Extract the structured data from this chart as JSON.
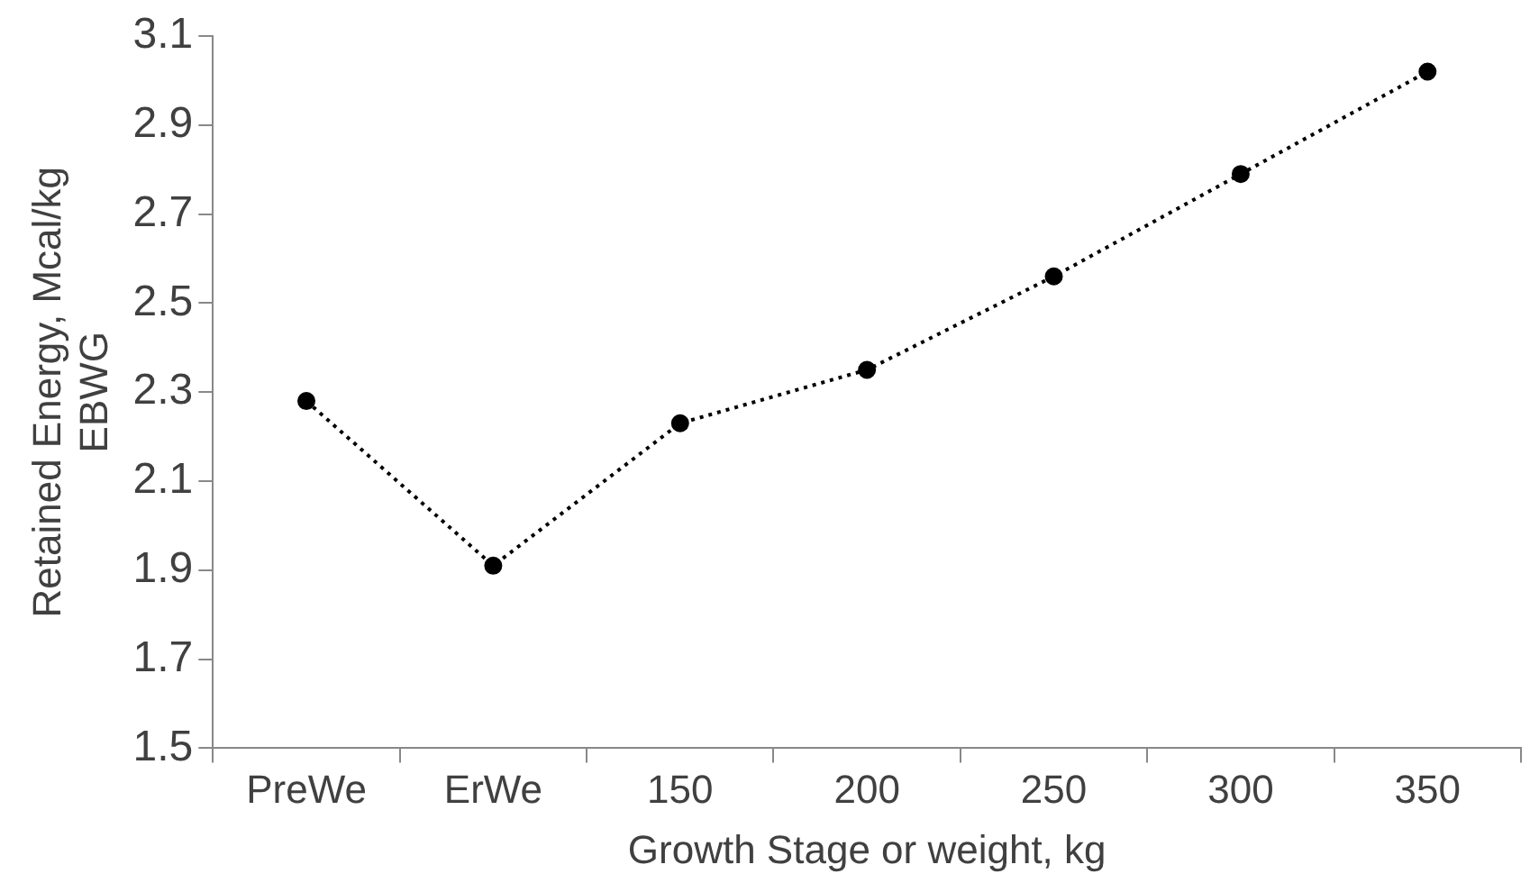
{
  "chart_data": {
    "type": "line",
    "xlabel": "Growth Stage or weight, kg",
    "ylabel": "Retained Energy, Mcal/kg EBWG",
    "categories": [
      "PreWe",
      "ErWe",
      "150",
      "200",
      "250",
      "300",
      "350"
    ],
    "series": [
      {
        "color": "#000000",
        "values": [
          2.28,
          1.91,
          2.23,
          2.35,
          2.56,
          2.79,
          3.02
        ]
      }
    ],
    "ylim": [
      1.5,
      3.1
    ],
    "yticks": [
      1.5,
      1.7,
      1.9,
      2.1,
      2.3,
      2.5,
      2.7,
      2.9,
      3.1
    ],
    "grid": false,
    "legend": false,
    "marker": "circle",
    "line_style": "dotted"
  }
}
